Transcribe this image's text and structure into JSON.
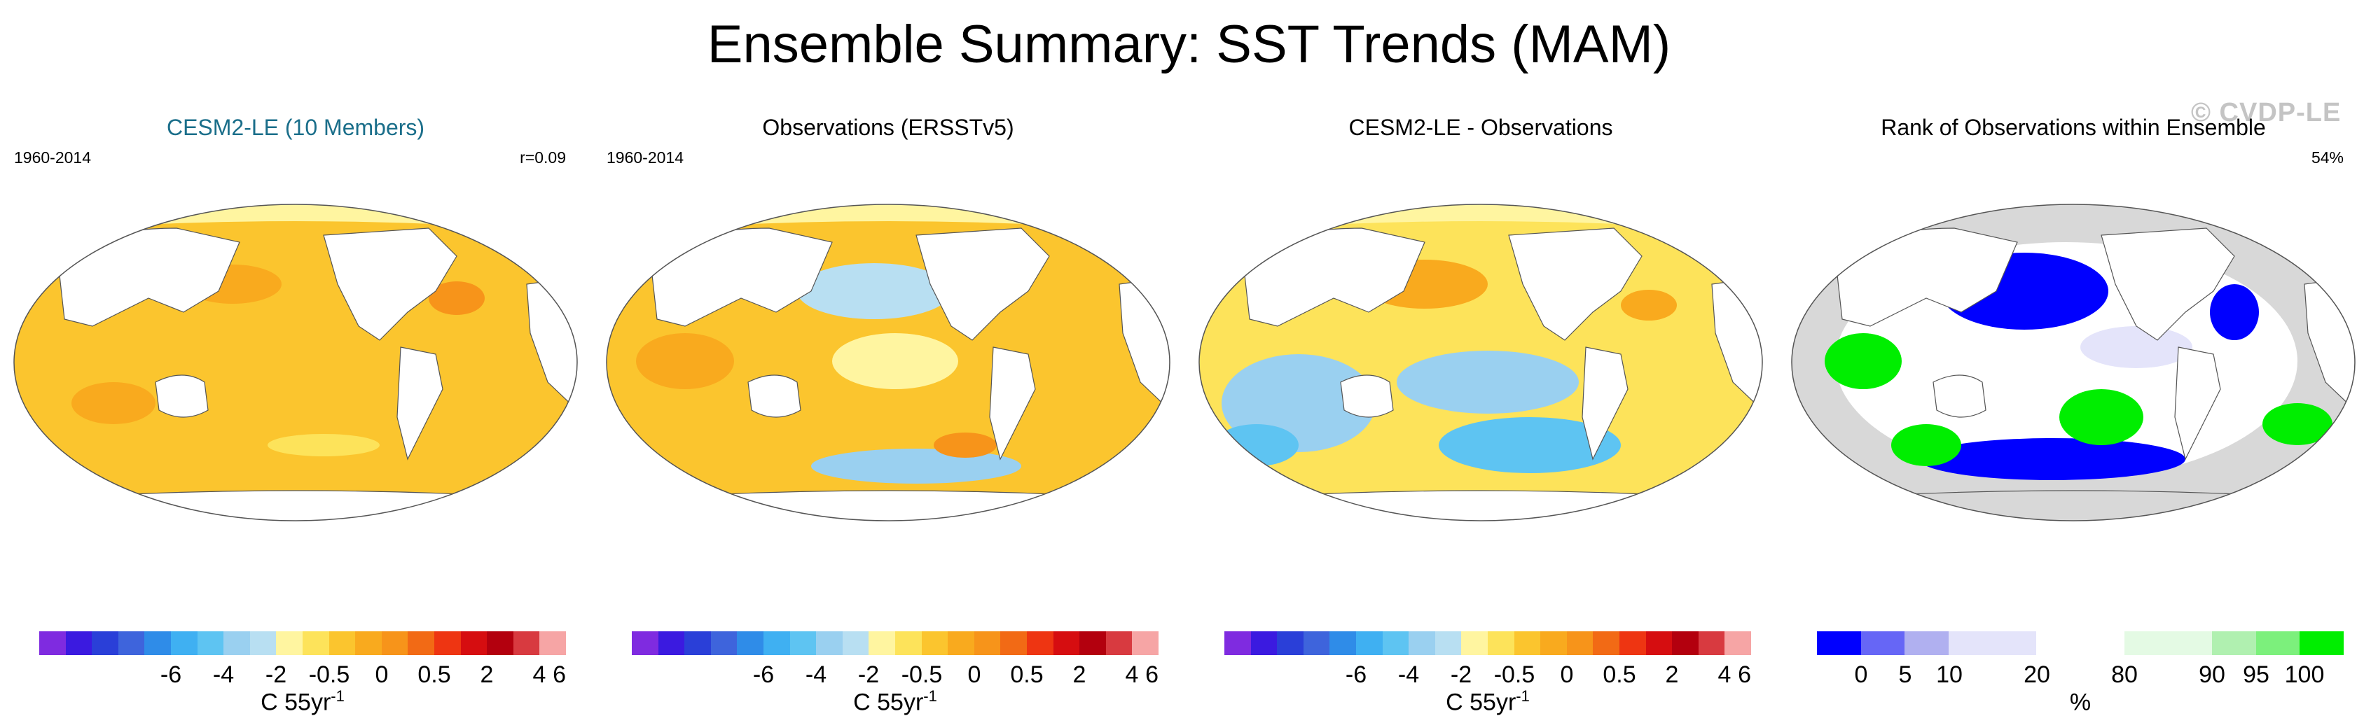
{
  "figure": {
    "title": "Ensemble Summary: SST Trends (MAM)",
    "watermark": "© CVDP-LE"
  },
  "panels": [
    {
      "title": "CESM2-LE (10 Members)",
      "left_label": "1960-2014",
      "right_label": "r=0.09",
      "colorbar_ticks": [
        "-6",
        "-4",
        "-2",
        "-0.5",
        "0",
        "0.5",
        "2",
        "4",
        "6"
      ],
      "colorbar_units": "C 55yr",
      "colorbar_units_exp": "-1"
    },
    {
      "title": "Observations (ERSSTv5)",
      "left_label": "1960-2014",
      "right_label": "",
      "colorbar_ticks": [
        "-6",
        "-4",
        "-2",
        "-0.5",
        "0",
        "0.5",
        "2",
        "4",
        "6"
      ],
      "colorbar_units": "C 55yr",
      "colorbar_units_exp": "-1"
    },
    {
      "title": "CESM2-LE - Observations",
      "left_label": "",
      "right_label": "",
      "colorbar_ticks": [
        "-6",
        "-4",
        "-2",
        "-0.5",
        "0",
        "0.5",
        "2",
        "4",
        "6"
      ],
      "colorbar_units": "C 55yr",
      "colorbar_units_exp": "-1"
    },
    {
      "title": "Rank of Observations within Ensemble",
      "left_label": "",
      "right_label": "54%",
      "colorbar_ticks": [
        "0",
        "5",
        "10",
        "20",
        "80",
        "90",
        "95",
        "100"
      ],
      "colorbar_units": "%",
      "colorbar_units_exp": ""
    }
  ],
  "colors": {
    "trend_scale": [
      "#7f2be0",
      "#3b1ae0",
      "#2a3fd8",
      "#3e64dc",
      "#2f8ce8",
      "#3fb0f2",
      "#5ec4f2",
      "#9ad0f0",
      "#b8dff2",
      "#fff5a0",
      "#fde35a",
      "#fbc52e",
      "#f9aa1e",
      "#f7941a",
      "#f26a15",
      "#ee3512",
      "#d60d10",
      "#b3000e",
      "#d83a40",
      "#f6a5a5"
    ],
    "rank_scale": [
      "#0000ff",
      "#6666f6",
      "#b0b0f0",
      "#e4e4fa",
      "#ffffff",
      "#e4fae4",
      "#b0f0b0",
      "#7cf07c",
      "#00ee00"
    ],
    "land": "#ffffff",
    "map_outline": "#555555",
    "rank_missing": "#d8d8d8"
  }
}
